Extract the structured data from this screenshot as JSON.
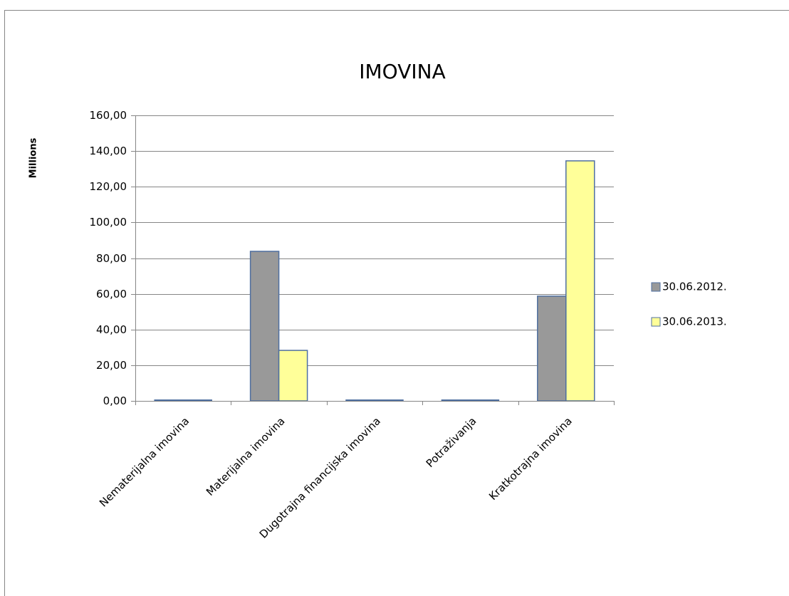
{
  "chart_data": {
    "type": "bar",
    "title": "IMOVINA",
    "y_label": "Millions",
    "categories": [
      "Nematerijalna imovina",
      "Materijalna imovina",
      "Dugotrajna financijska imovina",
      "Potraživanja",
      "Kratkotrajna imovina"
    ],
    "series": [
      {
        "name": "30.06.2012.",
        "color": "#999999",
        "values": [
          0.5,
          83.8,
          0.5,
          0.5,
          58.7
        ]
      },
      {
        "name": "30.06.2013.",
        "color": "#ffff99",
        "values": [
          0.5,
          28.3,
          0.5,
          0.5,
          134.5
        ]
      }
    ],
    "ylim": [
      0,
      160
    ],
    "yticks": [
      {
        "value": 0,
        "label": "0,00"
      },
      {
        "value": 20,
        "label": "20,00"
      },
      {
        "value": 40,
        "label": "40,00"
      },
      {
        "value": 60,
        "label": "60,00"
      },
      {
        "value": 80,
        "label": "80,00"
      },
      {
        "value": 100,
        "label": "100,00"
      },
      {
        "value": 120,
        "label": "120,00"
      },
      {
        "value": 140,
        "label": "140,00"
      },
      {
        "value": 160,
        "label": "160,00"
      }
    ],
    "grid": true,
    "legend": "right"
  }
}
